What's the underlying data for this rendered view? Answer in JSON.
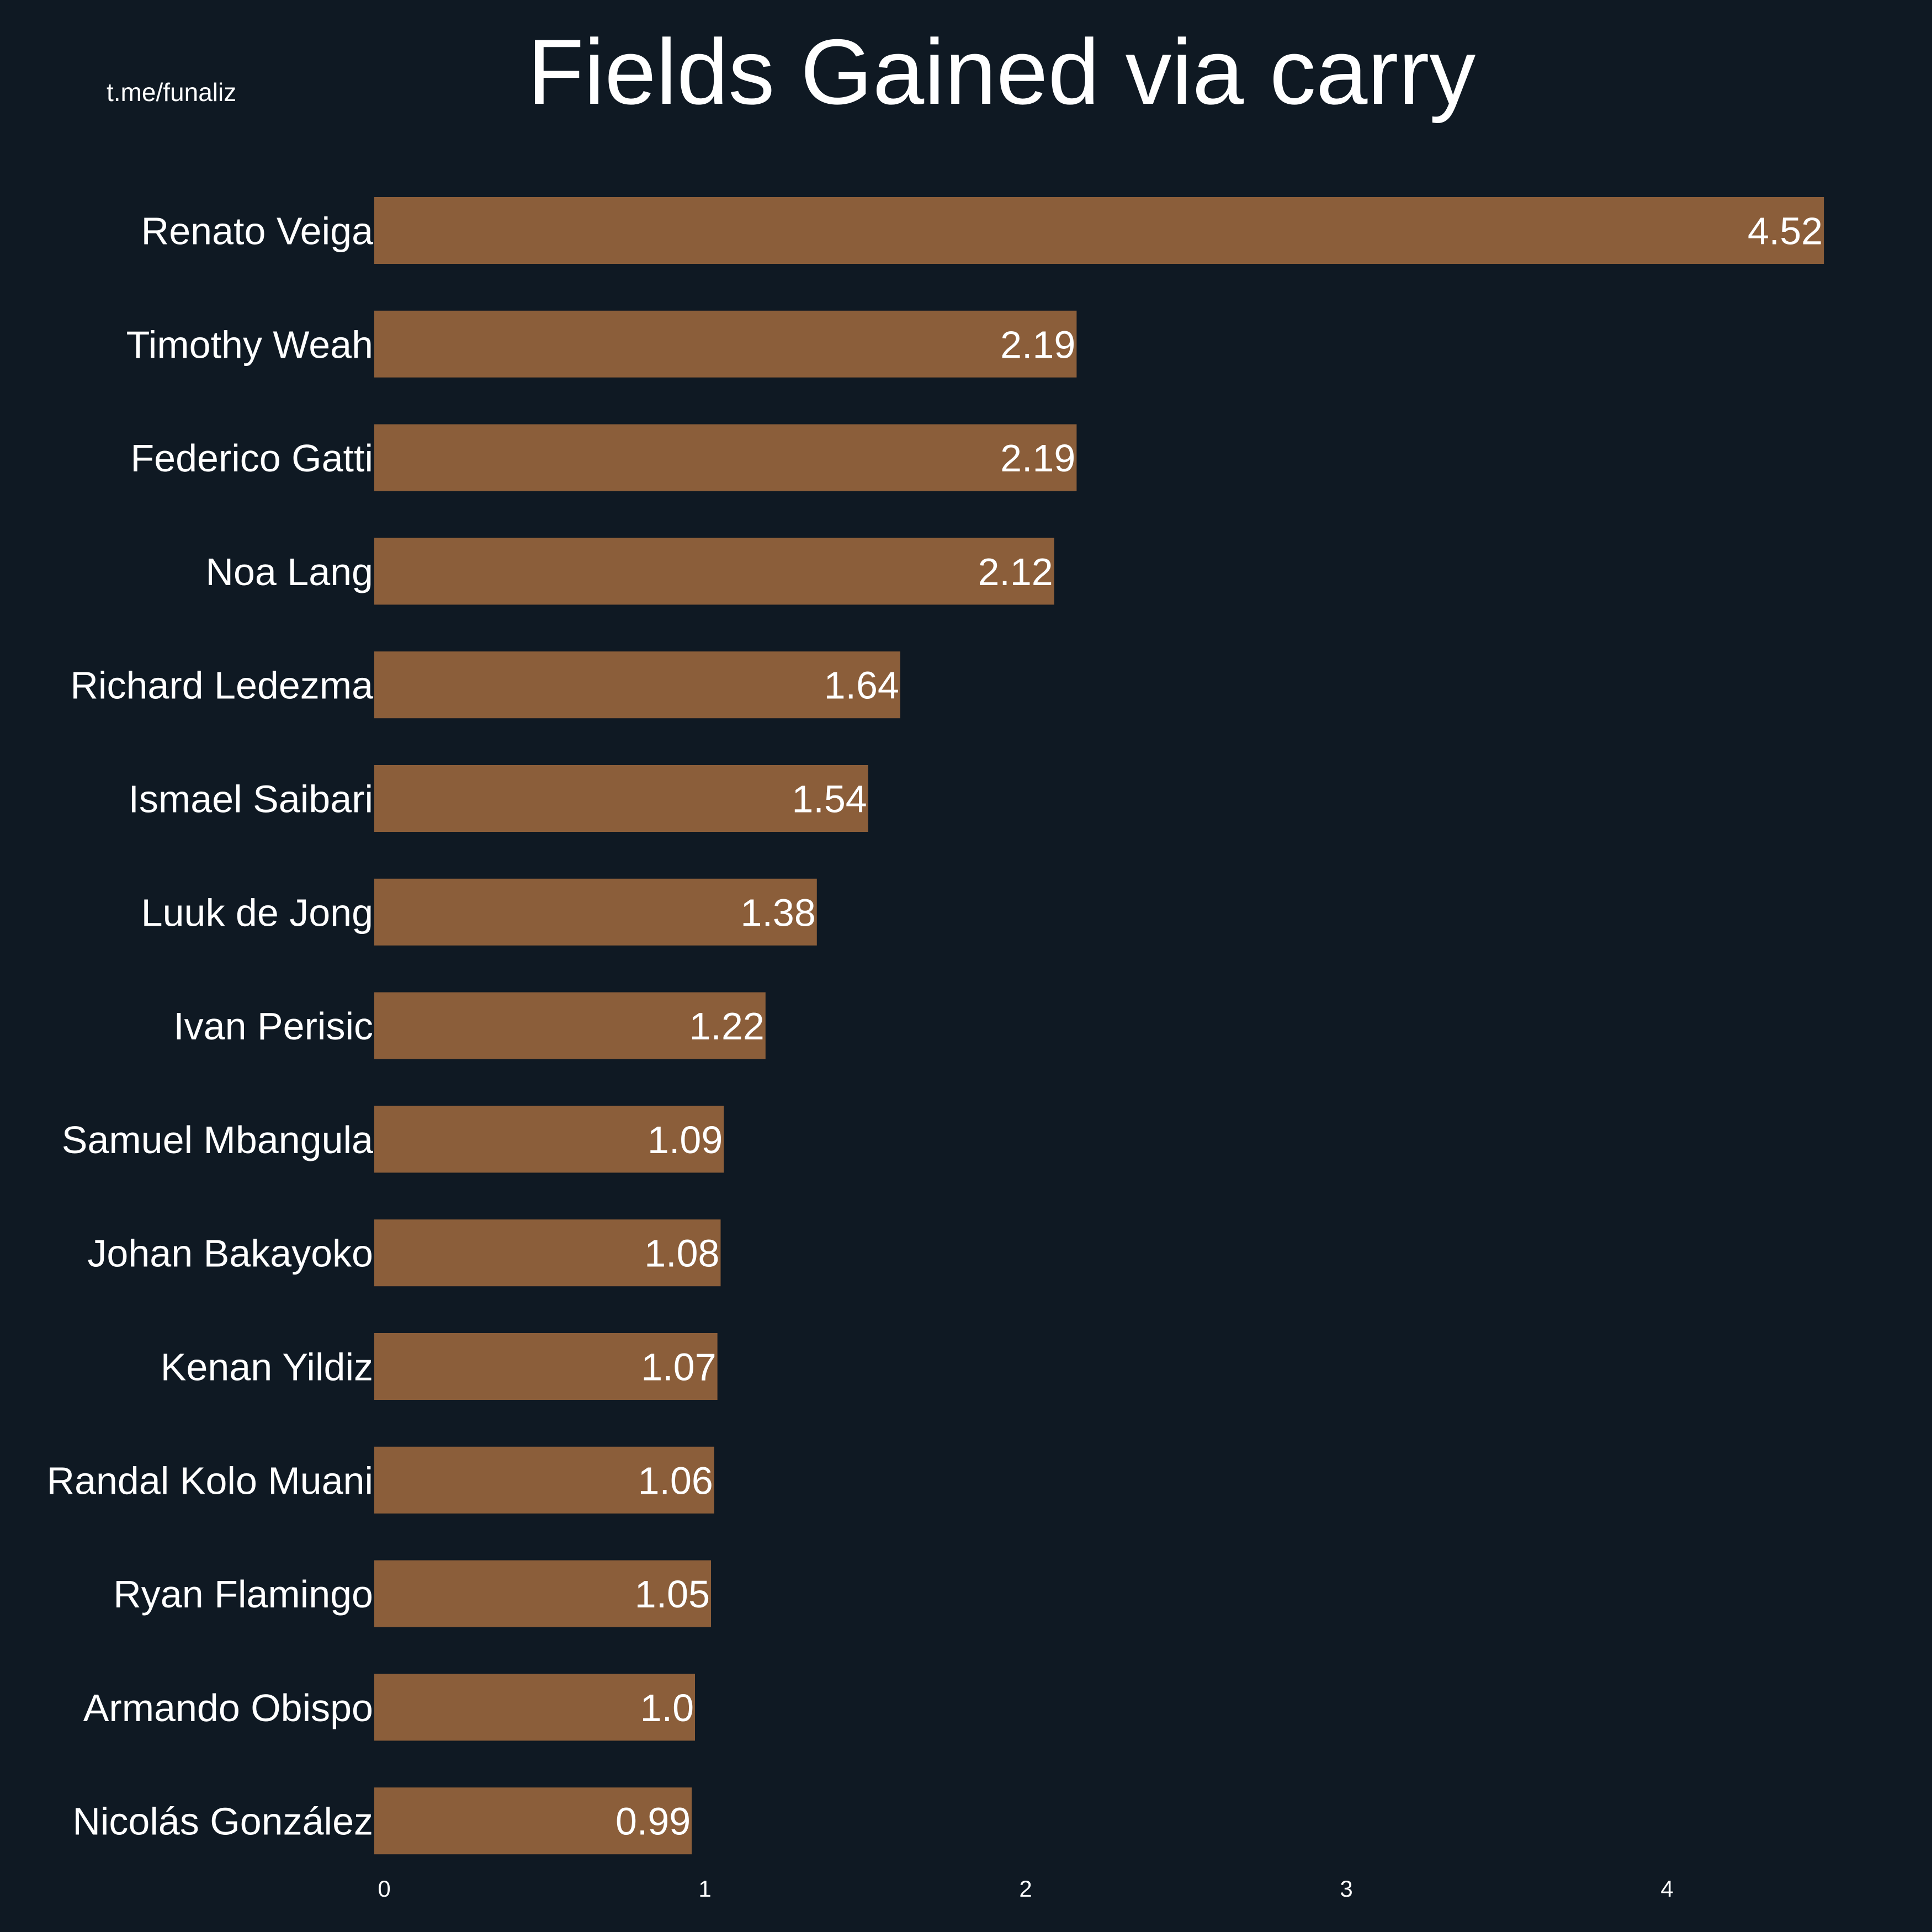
{
  "watermark": "t.me/funaliz",
  "colors": {
    "background": "#0f1923",
    "bar": "#8b5e3a",
    "text": "#ffffff"
  },
  "chart_data": {
    "type": "bar",
    "orientation": "horizontal",
    "title": "Fields Gained via carry",
    "xlabel": "",
    "ylabel": "",
    "xlim": [
      0,
      4.6
    ],
    "xticks": [
      0,
      1,
      2,
      3,
      4
    ],
    "grid": false,
    "categories": [
      "Renato Veiga",
      "Timothy Weah",
      "Federico Gatti",
      "Noa Lang",
      "Richard Ledezma",
      "Ismael Saibari",
      "Luuk de Jong",
      "Ivan Perisic",
      "Samuel Mbangula",
      "Johan Bakayoko",
      "Kenan Yildiz",
      "Randal Kolo Muani",
      "Ryan Flamingo",
      "Armando Obispo",
      "Nicolás González"
    ],
    "values": [
      4.52,
      2.19,
      2.19,
      2.12,
      1.64,
      1.54,
      1.38,
      1.22,
      1.09,
      1.08,
      1.07,
      1.06,
      1.05,
      1.0,
      0.99
    ],
    "value_labels": [
      "4.52",
      "2.19",
      "2.19",
      "2.12",
      "1.64",
      "1.54",
      "1.38",
      "1.22",
      "1.09",
      "1.08",
      "1.07",
      "1.06",
      "1.05",
      "1.0",
      "0.99"
    ]
  }
}
